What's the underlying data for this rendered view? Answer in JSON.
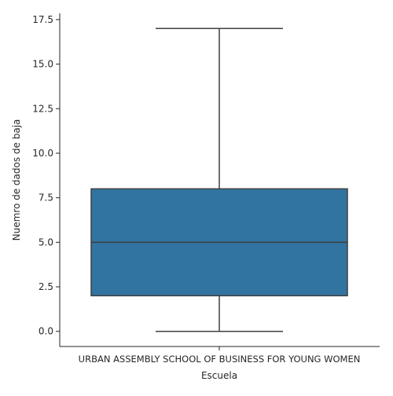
{
  "chart_data": {
    "type": "box",
    "title": "",
    "xlabel": "Escuela",
    "ylabel": "Nuemro de dados de baja",
    "categories": [
      "URBAN ASSEMBLY SCHOOL OF BUSINESS FOR YOUNG WOMEN"
    ],
    "boxes": [
      {
        "category": "URBAN ASSEMBLY SCHOOL OF BUSINESS FOR YOUNG WOMEN",
        "whisker_low": 0,
        "q1": 2,
        "median": 5,
        "q3": 8,
        "whisker_high": 17
      }
    ],
    "ylim": [
      -0.85,
      17.85
    ],
    "yticks": [
      "0.0",
      "2.5",
      "5.0",
      "7.5",
      "10.0",
      "12.5",
      "15.0",
      "17.5"
    ],
    "grid": false,
    "colors": {
      "box_fill": "#3274a1",
      "line": "#3f3f3f",
      "axis": "#262626"
    }
  }
}
